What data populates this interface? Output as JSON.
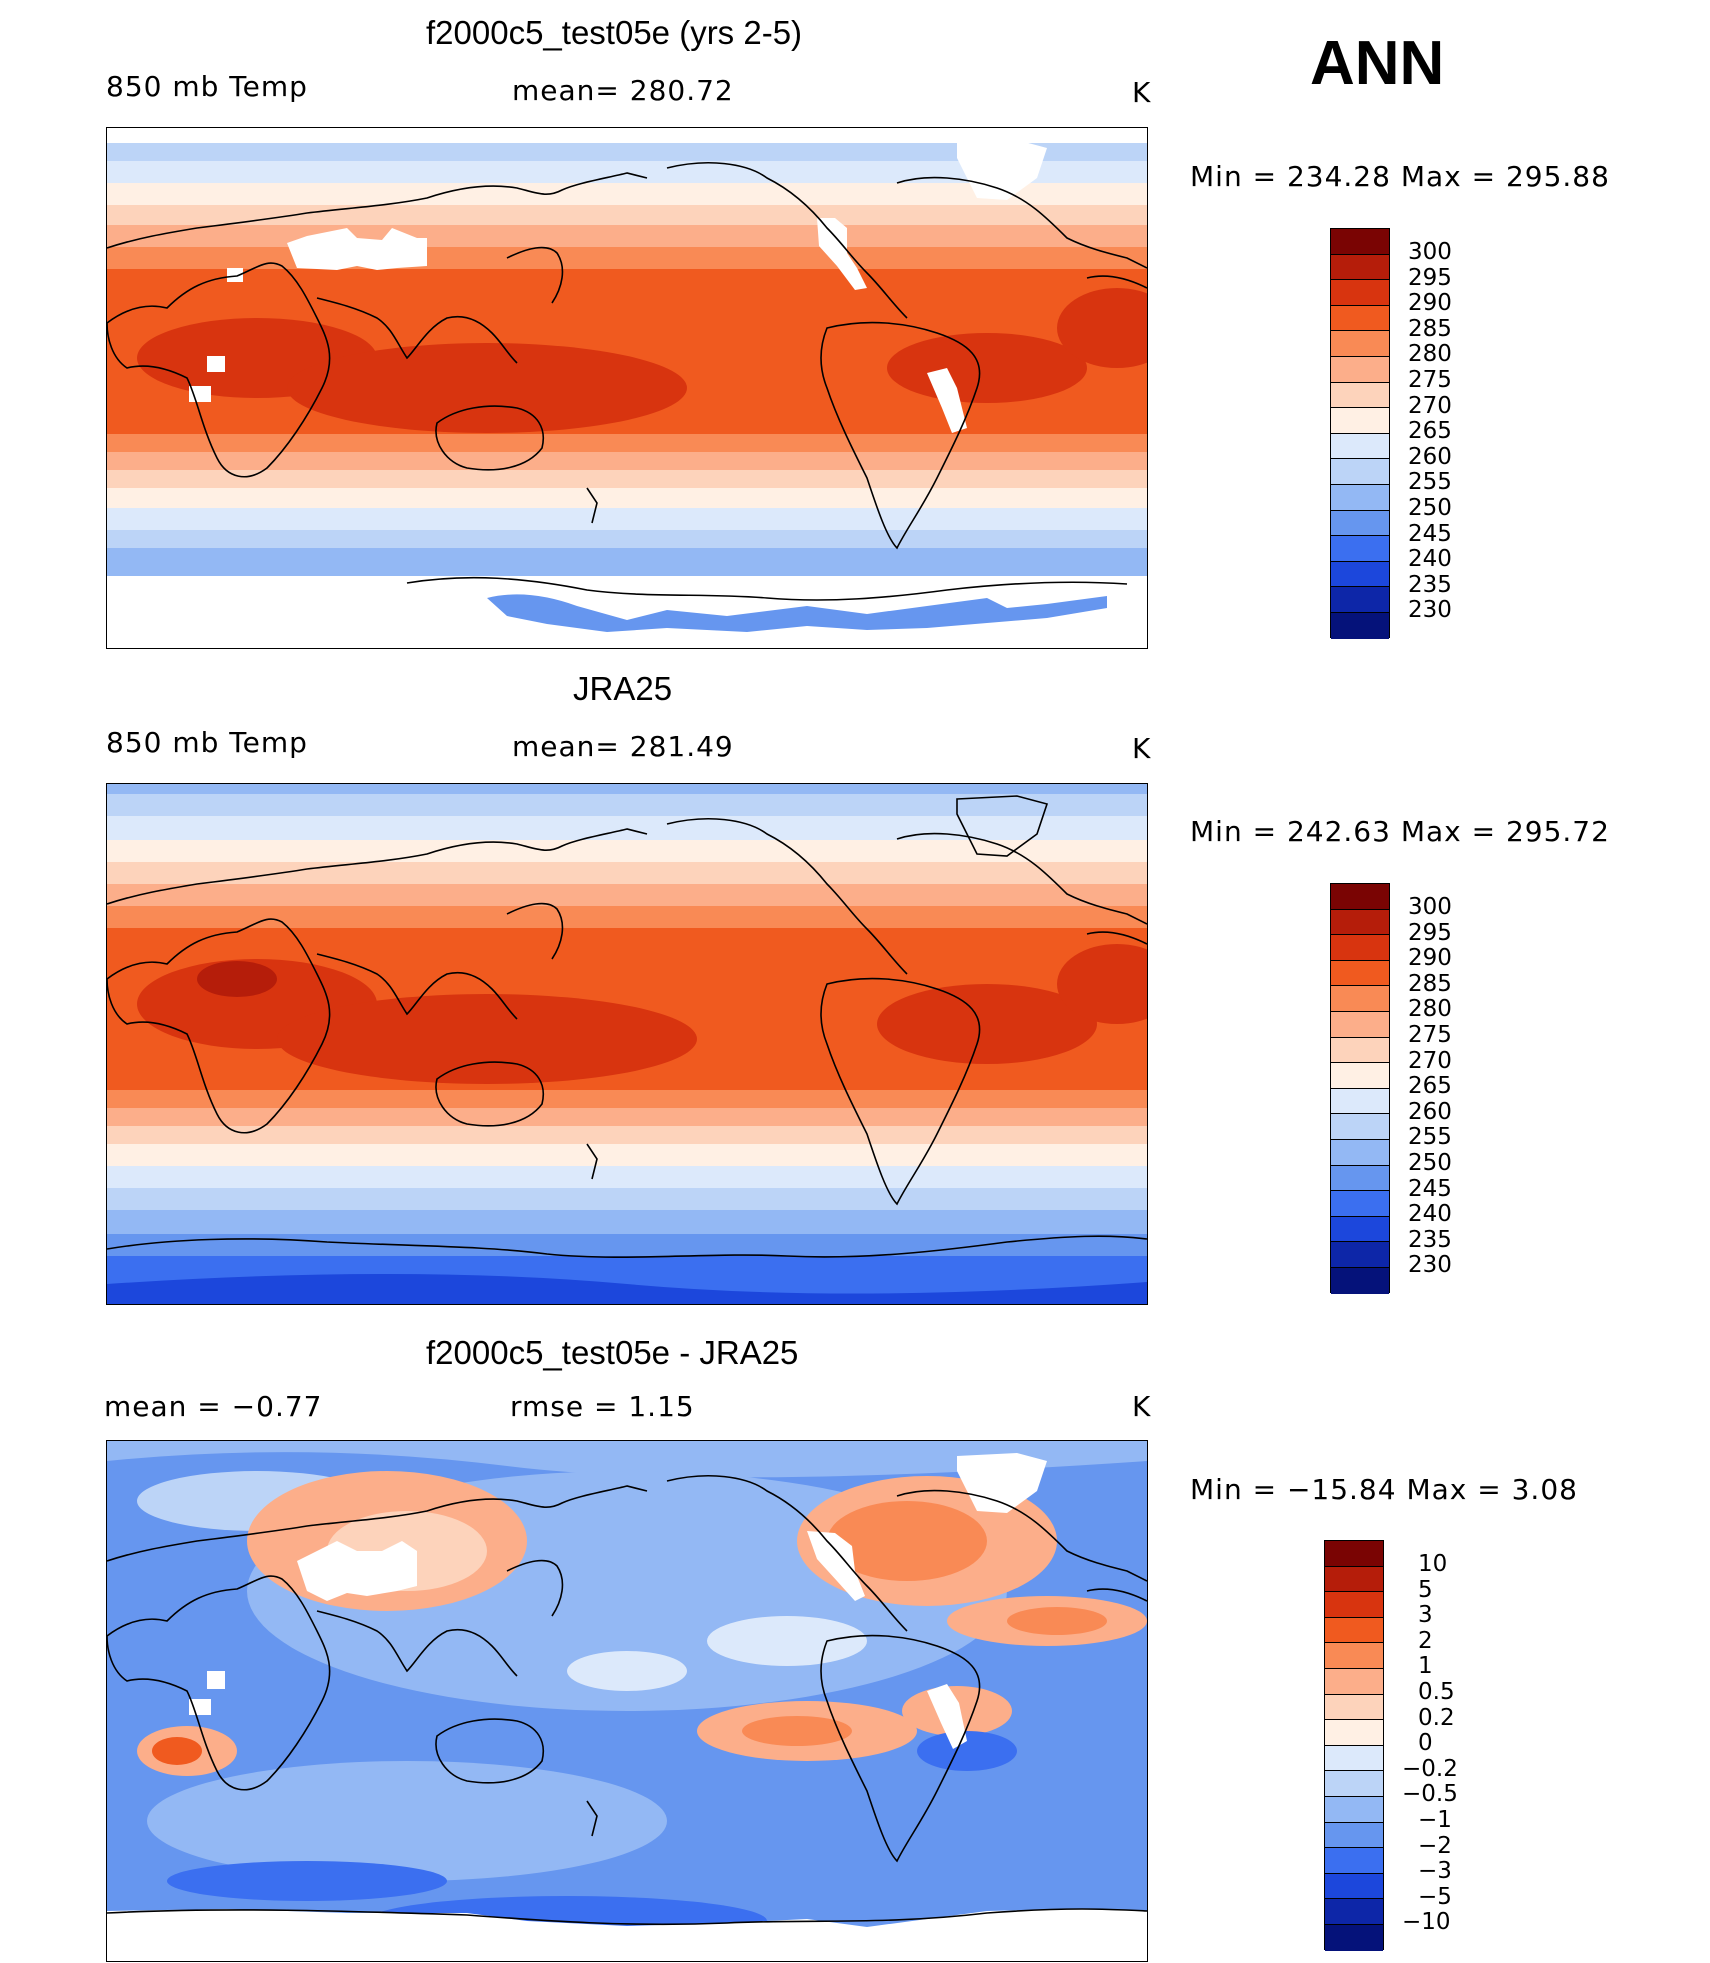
{
  "season": "ANN",
  "panels": [
    {
      "title": "f2000c5_test05e (yrs 2-5)",
      "left_label": "850 mb Temp",
      "center_label": "mean= 280.72",
      "units": "K",
      "minmax": "Min = 234.28 Max = 295.88",
      "colorbar_labels": [
        "300",
        "295",
        "290",
        "285",
        "280",
        "275",
        "270",
        "265",
        "260",
        "255",
        "250",
        "245",
        "240",
        "235",
        "230"
      ]
    },
    {
      "title": "JRA25",
      "left_label": "850 mb Temp",
      "center_label": "mean= 281.49",
      "units": "K",
      "minmax": "Min = 242.63 Max = 295.72",
      "colorbar_labels": [
        "300",
        "295",
        "290",
        "285",
        "280",
        "275",
        "270",
        "265",
        "260",
        "255",
        "250",
        "245",
        "240",
        "235",
        "230"
      ]
    },
    {
      "title": "f2000c5_test05e - JRA25",
      "left_label": "mean =   −0.77",
      "center_label": "rmse =    1.15",
      "units": "K",
      "minmax": "Min = −15.84 Max =    3.08",
      "colorbar_labels": [
        "10",
        "5",
        "3",
        "2",
        "1",
        "0.5",
        "0.2",
        "0",
        "−0.2",
        "−0.5",
        "−1",
        "−2",
        "−3",
        "−5",
        "−10"
      ]
    }
  ],
  "colors": {
    "abs_scale": [
      "#7a0403",
      "#b51d0a",
      "#d8340f",
      "#f05a1f",
      "#f98a55",
      "#fcae8a",
      "#fdd3bb",
      "#fff0e4",
      "#dce9fb",
      "#bcd4f7",
      "#93b8f4",
      "#6696ef",
      "#3b6ff0",
      "#1c47dc",
      "#0d26a8",
      "#05127a"
    ],
    "diff_scale": [
      "#7a0403",
      "#b51d0a",
      "#d8340f",
      "#f05a1f",
      "#f98a55",
      "#fcae8a",
      "#fdd3bb",
      "#fff0e4",
      "#dce9fb",
      "#bcd4f7",
      "#93b8f4",
      "#6696ef",
      "#3b6ff0",
      "#1c47dc",
      "#0d26a8",
      "#05127a"
    ],
    "missing": "#ffffff",
    "coastline": "#000000"
  }
}
